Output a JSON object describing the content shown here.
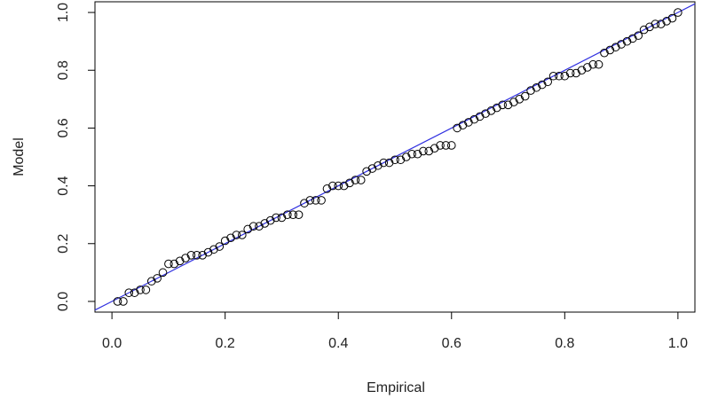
{
  "chart_data": {
    "type": "scatter",
    "x_label": "Empirical",
    "y_label": "Model",
    "xlim": [
      -0.03,
      1.03
    ],
    "ylim": [
      -0.037,
      1.037
    ],
    "xticks": [
      {
        "value": 0,
        "label": "0.0"
      },
      0.2,
      0.4,
      0.6,
      0.8,
      {
        "value": 1,
        "label": "1.0"
      }
    ],
    "yticks": [
      {
        "value": 0,
        "label": "0.0"
      },
      0.2,
      0.4,
      0.6,
      0.8,
      {
        "value": 1,
        "label": "1.0"
      }
    ],
    "color": "#000000",
    "reference_line": {
      "x": [
        -0.03,
        1.03
      ],
      "y": [
        -0.03,
        1.03
      ],
      "color": "#3030e0"
    },
    "x": [
      0.01,
      0.02,
      0.03,
      0.04,
      0.05,
      0.06,
      0.07,
      0.08,
      0.09,
      0.1,
      0.11,
      0.12,
      0.13,
      0.14,
      0.15,
      0.16,
      0.17,
      0.18,
      0.19,
      0.2,
      0.21,
      0.22,
      0.23,
      0.24,
      0.25,
      0.26,
      0.27,
      0.28,
      0.29,
      0.3,
      0.31,
      0.32,
      0.33,
      0.34,
      0.35,
      0.36,
      0.37,
      0.38,
      0.39,
      0.4,
      0.41,
      0.42,
      0.43,
      0.44,
      0.45,
      0.46,
      0.47,
      0.48,
      0.49,
      0.5,
      0.51,
      0.52,
      0.53,
      0.54,
      0.55,
      0.56,
      0.57,
      0.58,
      0.59,
      0.6,
      0.61,
      0.62,
      0.63,
      0.64,
      0.65,
      0.66,
      0.67,
      0.68,
      0.69,
      0.7,
      0.71,
      0.72,
      0.73,
      0.74,
      0.75,
      0.76,
      0.77,
      0.78,
      0.79,
      0.8,
      0.81,
      0.82,
      0.83,
      0.84,
      0.85,
      0.86,
      0.87,
      0.88,
      0.89,
      0.9,
      0.91,
      0.92,
      0.93,
      0.94,
      0.95,
      0.96,
      0.97,
      0.98,
      0.99,
      1.0
    ],
    "values": [
      0.0,
      0.0,
      0.03,
      0.03,
      0.04,
      0.04,
      0.07,
      0.08,
      0.1,
      0.13,
      0.13,
      0.14,
      0.15,
      0.16,
      0.16,
      0.16,
      0.17,
      0.18,
      0.19,
      0.21,
      0.22,
      0.23,
      0.23,
      0.25,
      0.26,
      0.26,
      0.27,
      0.28,
      0.29,
      0.29,
      0.3,
      0.3,
      0.3,
      0.34,
      0.35,
      0.35,
      0.35,
      0.39,
      0.4,
      0.4,
      0.4,
      0.41,
      0.42,
      0.42,
      0.45,
      0.46,
      0.47,
      0.48,
      0.48,
      0.49,
      0.49,
      0.5,
      0.51,
      0.51,
      0.52,
      0.52,
      0.53,
      0.54,
      0.54,
      0.54,
      0.6,
      0.61,
      0.62,
      0.63,
      0.64,
      0.65,
      0.66,
      0.67,
      0.68,
      0.68,
      0.69,
      0.7,
      0.71,
      0.73,
      0.74,
      0.75,
      0.76,
      0.78,
      0.78,
      0.78,
      0.79,
      0.79,
      0.8,
      0.81,
      0.82,
      0.82,
      0.86,
      0.87,
      0.88,
      0.89,
      0.9,
      0.91,
      0.92,
      0.94,
      0.95,
      0.96,
      0.96,
      0.97,
      0.98,
      1.0
    ]
  }
}
